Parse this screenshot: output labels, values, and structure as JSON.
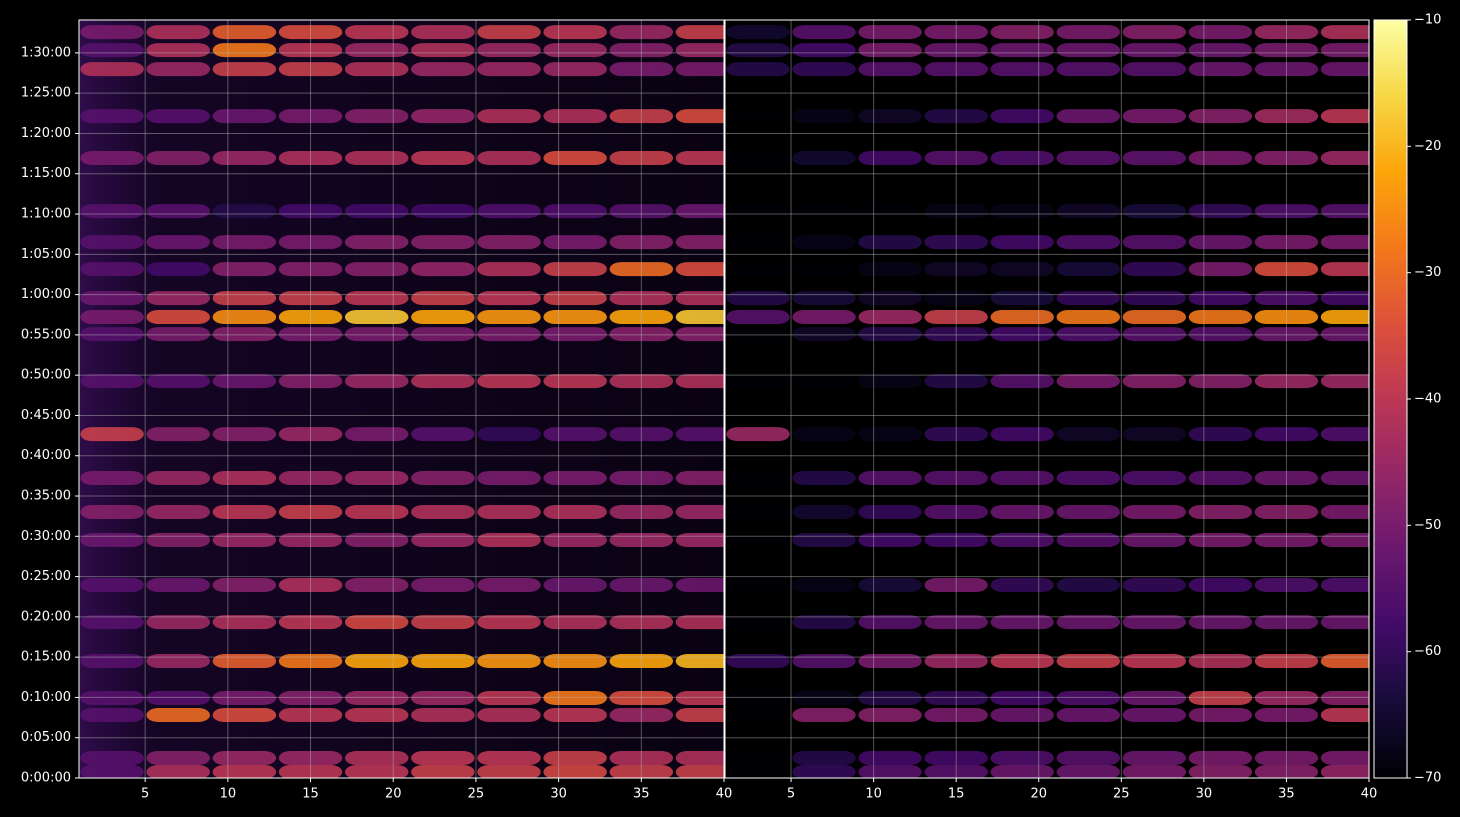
{
  "chart_data": [
    {
      "type": "heatmap",
      "colormap": "inferno",
      "grid": true,
      "xlim": [
        1,
        40
      ],
      "ylim": [
        0,
        5645
      ],
      "xticks": [
        5,
        10,
        15,
        20,
        25,
        30,
        35,
        40
      ],
      "yticks": [
        {
          "value": 0,
          "label": "0:00:00"
        },
        {
          "value": 300,
          "label": "0:05:00"
        },
        {
          "value": 600,
          "label": "0:10:00"
        },
        {
          "value": 900,
          "label": "0:15:00"
        },
        {
          "value": 1200,
          "label": "0:20:00"
        },
        {
          "value": 1500,
          "label": "0:25:00"
        },
        {
          "value": 1800,
          "label": "0:30:00"
        },
        {
          "value": 2100,
          "label": "0:35:00"
        },
        {
          "value": 2400,
          "label": "0:40:00"
        },
        {
          "value": 2700,
          "label": "0:45:00"
        },
        {
          "value": 3000,
          "label": "0:50:00"
        },
        {
          "value": 3300,
          "label": "0:55:00"
        },
        {
          "value": 3600,
          "label": "1:00:00"
        },
        {
          "value": 3900,
          "label": "1:05:00"
        },
        {
          "value": 4200,
          "label": "1:10:00"
        },
        {
          "value": 4500,
          "label": "1:15:00"
        },
        {
          "value": 4800,
          "label": "1:20:00"
        },
        {
          "value": 5100,
          "label": "1:25:00"
        },
        {
          "value": 5400,
          "label": "1:30:00"
        }
      ],
      "x": [
        3,
        7,
        11,
        15,
        19,
        23,
        27,
        31,
        35,
        39
      ],
      "y": [
        5555,
        5421,
        5279,
        4929,
        4617,
        4222,
        3991,
        3790,
        3574,
        3433,
        3306,
        2956,
        2561,
        2234,
        1981,
        1772,
        1437,
        1161,
        871,
        596,
        469,
        149,
        45
      ],
      "values": [
        [
          -50,
          -42,
          -32,
          -35,
          -40,
          -42,
          -38,
          -40,
          -45,
          -38
        ],
        [
          -55,
          -42,
          -28,
          -40,
          -45,
          -42,
          -45,
          -45,
          -48,
          -45
        ],
        [
          -42,
          -45,
          -38,
          -38,
          -42,
          -45,
          -45,
          -45,
          -50,
          -50
        ],
        [
          -55,
          -55,
          -52,
          -50,
          -48,
          -46,
          -42,
          -42,
          -38,
          -35
        ],
        [
          -50,
          -48,
          -45,
          -42,
          -42,
          -40,
          -42,
          -35,
          -38,
          -40
        ],
        [
          -55,
          -55,
          -62,
          -58,
          -58,
          -58,
          -56,
          -56,
          -55,
          -52
        ],
        [
          -55,
          -52,
          -50,
          -50,
          -48,
          -48,
          -48,
          -50,
          -48,
          -48
        ],
        [
          -55,
          -58,
          -48,
          -48,
          -48,
          -46,
          -42,
          -38,
          -30,
          -35
        ],
        [
          -52,
          -45,
          -38,
          -38,
          -40,
          -38,
          -40,
          -38,
          -42,
          -42
        ],
        [
          -50,
          -35,
          -25,
          -22,
          -18,
          -22,
          -24,
          -24,
          -22,
          -18
        ],
        [
          -55,
          -50,
          -48,
          -50,
          -50,
          -50,
          -50,
          -50,
          -48,
          -48
        ],
        [
          -55,
          -55,
          -52,
          -48,
          -45,
          -42,
          -40,
          -40,
          -42,
          -42
        ],
        [
          -38,
          -48,
          -48,
          -45,
          -50,
          -55,
          -60,
          -55,
          -55,
          -55
        ],
        [
          -50,
          -45,
          -42,
          -45,
          -45,
          -48,
          -50,
          -50,
          -50,
          -48
        ],
        [
          -48,
          -45,
          -40,
          -38,
          -40,
          -42,
          -42,
          -42,
          -45,
          -45
        ],
        [
          -52,
          -48,
          -45,
          -45,
          -48,
          -45,
          -42,
          -45,
          -45,
          -45
        ],
        [
          -55,
          -52,
          -48,
          -42,
          -48,
          -50,
          -50,
          -52,
          -52,
          -52
        ],
        [
          -55,
          -45,
          -42,
          -40,
          -36,
          -38,
          -40,
          -42,
          -42,
          -42
        ],
        [
          -55,
          -45,
          -32,
          -28,
          -22,
          -22,
          -24,
          -25,
          -22,
          -20
        ],
        [
          -55,
          -55,
          -50,
          -48,
          -45,
          -45,
          -40,
          -28,
          -35,
          -40
        ],
        [
          -55,
          -30,
          -35,
          -40,
          -40,
          -42,
          -42,
          -40,
          -45,
          -38
        ],
        [
          -55,
          -48,
          -45,
          -45,
          -42,
          -40,
          -40,
          -38,
          -42,
          -42
        ],
        [
          -55,
          -42,
          -40,
          -40,
          -40,
          -38,
          -38,
          -36,
          -38,
          -38
        ]
      ]
    },
    {
      "type": "heatmap",
      "colormap": "inferno",
      "grid": true,
      "xlim": [
        1,
        40
      ],
      "ylim": [
        0,
        5645
      ],
      "xticks": [
        5,
        10,
        15,
        20,
        25,
        30,
        35,
        40
      ],
      "yticks": [
        0,
        300,
        600,
        900,
        1200,
        1500,
        1800,
        2100,
        2400,
        2700,
        3000,
        3300,
        3600,
        3900,
        4200,
        4500,
        4800,
        5100,
        5400
      ],
      "x": [
        3,
        7,
        11,
        15,
        19,
        23,
        27,
        31,
        35,
        39
      ],
      "y": [
        5555,
        5421,
        5279,
        4929,
        4617,
        4222,
        3991,
        3790,
        3574,
        3433,
        3306,
        2956,
        2561,
        2234,
        1981,
        1772,
        1437,
        1161,
        871,
        596,
        469,
        149,
        45
      ],
      "values": [
        [
          -65,
          -55,
          -50,
          -50,
          -48,
          -50,
          -48,
          -50,
          -45,
          -42
        ],
        [
          -62,
          -58,
          -50,
          -52,
          -52,
          -52,
          -52,
          -52,
          -50,
          -50
        ],
        [
          -62,
          -60,
          -55,
          -55,
          -55,
          -55,
          -55,
          -52,
          -52,
          -52
        ],
        [
          -70,
          -68,
          -66,
          -62,
          -58,
          -52,
          -50,
          -48,
          -44,
          -40
        ],
        [
          -70,
          -65,
          -58,
          -55,
          -56,
          -55,
          -54,
          -50,
          -48,
          -45
        ],
        [
          -70,
          -70,
          -70,
          -68,
          -68,
          -66,
          -64,
          -60,
          -56,
          -55
        ],
        [
          -70,
          -68,
          -62,
          -60,
          -58,
          -56,
          -55,
          -52,
          -50,
          -50
        ],
        [
          -70,
          -70,
          -68,
          -66,
          -66,
          -64,
          -60,
          -50,
          -35,
          -40
        ],
        [
          -62,
          -64,
          -66,
          -68,
          -64,
          -60,
          -60,
          -58,
          -56,
          -58
        ],
        [
          -55,
          -50,
          -45,
          -38,
          -30,
          -28,
          -30,
          -28,
          -25,
          -22
        ],
        [
          -70,
          -66,
          -62,
          -60,
          -58,
          -56,
          -55,
          -55,
          -52,
          -52
        ],
        [
          -70,
          -70,
          -68,
          -62,
          -55,
          -50,
          -48,
          -48,
          -45,
          -45
        ],
        [
          -45,
          -68,
          -68,
          -60,
          -58,
          -66,
          -66,
          -60,
          -58,
          -56
        ],
        [
          -70,
          -62,
          -55,
          -55,
          -55,
          -56,
          -56,
          -55,
          -52,
          -52
        ],
        [
          -70,
          -65,
          -60,
          -55,
          -52,
          -52,
          -50,
          -48,
          -48,
          -50
        ],
        [
          -70,
          -62,
          -58,
          -58,
          -56,
          -55,
          -52,
          -50,
          -50,
          -50
        ],
        [
          -70,
          -68,
          -64,
          -50,
          -60,
          -62,
          -60,
          -58,
          -56,
          -56
        ],
        [
          -70,
          -62,
          -55,
          -52,
          -52,
          -52,
          -52,
          -52,
          -52,
          -52
        ],
        [
          -60,
          -55,
          -50,
          -45,
          -40,
          -38,
          -40,
          -42,
          -38,
          -32
        ],
        [
          -70,
          -68,
          -62,
          -60,
          -58,
          -56,
          -52,
          -38,
          -45,
          -48
        ],
        [
          -70,
          -48,
          -48,
          -50,
          -52,
          -52,
          -52,
          -50,
          -50,
          -40
        ],
        [
          -70,
          -62,
          -58,
          -58,
          -56,
          -55,
          -52,
          -50,
          -50,
          -50
        ],
        [
          -70,
          -60,
          -55,
          -55,
          -52,
          -52,
          -50,
          -48,
          -48,
          -46
        ]
      ]
    }
  ],
  "colorbar": {
    "lim": [
      -70,
      -10
    ],
    "ticks": [
      {
        "value": -10,
        "label": "−10"
      },
      {
        "value": -20,
        "label": "−20"
      },
      {
        "value": -30,
        "label": "−30"
      },
      {
        "value": -40,
        "label": "−40"
      },
      {
        "value": -50,
        "label": "−50"
      },
      {
        "value": -60,
        "label": "−60"
      },
      {
        "value": -70,
        "label": "−70"
      }
    ]
  }
}
